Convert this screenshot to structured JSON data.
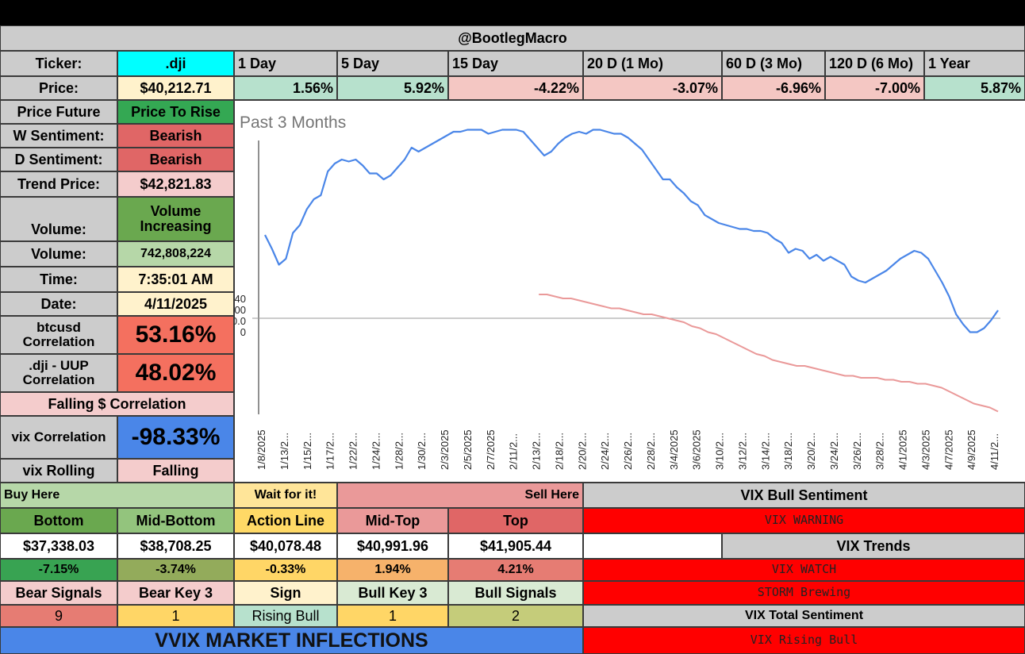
{
  "header": {
    "title": "@BootlegMacro"
  },
  "ticker": {
    "label": "Ticker:",
    "value": ".dji"
  },
  "price": {
    "label": "Price:",
    "value": "$40,212.71"
  },
  "periods": [
    {
      "label": "1 Day",
      "change": "1.56%",
      "color": "#b7e1cd"
    },
    {
      "label": "5 Day",
      "change": "5.92%",
      "color": "#b7e1cd"
    },
    {
      "label": "15 Day",
      "change": "-4.22%",
      "color": "#f4c7c3"
    },
    {
      "label": "20 D (1 Mo)",
      "change": "-3.07%",
      "color": "#f4c7c3"
    },
    {
      "label": "60 D (3 Mo)",
      "change": "-6.96%",
      "color": "#f4c7c3"
    },
    {
      "label": "120 D (6 Mo)",
      "change": "-7.00%",
      "color": "#f4c7c3"
    },
    {
      "label": "1 Year",
      "change": "5.87%",
      "color": "#b7e1cd"
    }
  ],
  "left_rows": {
    "price_future": {
      "label": "Price Future",
      "value": "Price To Rise"
    },
    "w_sentiment": {
      "label": "W Sentiment:",
      "value": "Bearish"
    },
    "d_sentiment": {
      "label": "D Sentiment:",
      "value": "Bearish"
    },
    "trend_price": {
      "label": "Trend Price:",
      "value": "$42,821.83"
    },
    "volume_trend": {
      "label": "Volume:",
      "value": "Volume Increasing"
    },
    "volume": {
      "label": "Volume:",
      "value": "742,808,224"
    },
    "time": {
      "label": "Time:",
      "value": "7:35:01 AM"
    },
    "date": {
      "label": "Date:",
      "value": "4/11/2025"
    },
    "btc_corr": {
      "label": "btcusd Correlation",
      "value": "53.16%"
    },
    "uup_corr": {
      "label": ".dji - UUP Correlation",
      "value": "48.02%"
    },
    "falling": {
      "label": "Falling $ Correlation"
    },
    "vix_corr": {
      "label": "vix Correlation",
      "value": "-98.33%"
    },
    "vix_rolling": {
      "label": "vix Rolling",
      "value": "Falling"
    }
  },
  "zones": {
    "buy_here": "Buy Here",
    "wait": "Wait for it!",
    "sell_here": "Sell Here",
    "columns": [
      {
        "name": "Bottom",
        "price": "$37,338.03",
        "pct": "-7.15%"
      },
      {
        "name": "Mid-Bottom",
        "price": "$38,708.25",
        "pct": "-3.74%"
      },
      {
        "name": "Action Line",
        "price": "$40,078.48",
        "pct": "-0.33%"
      },
      {
        "name": "Mid-Top",
        "price": "$40,991.96",
        "pct": "1.94%"
      },
      {
        "name": "Top",
        "price": "$41,905.44",
        "pct": "4.21%"
      }
    ]
  },
  "signals": {
    "headers": [
      "Bear Signals",
      "Bear Key 3",
      "Sign",
      "Bull Key 3",
      "Bull Signals"
    ],
    "values": [
      "9",
      "1",
      "Rising Bull",
      "1",
      "2"
    ]
  },
  "vvix": {
    "label": "VVIX MARKET INFLECTIONS"
  },
  "vix_panel": {
    "bull_sentiment": "VIX Bull Sentiment",
    "warning": "VIX WARNING",
    "trends": "VIX Trends",
    "watch": "VIX WATCH",
    "storm": "STORM Brewing",
    "total": "VIX Total Sentiment",
    "rising": "VIX Rising Bull"
  },
  "chart_data": {
    "type": "line",
    "title": "Past 3 Months",
    "x_tick_labels": [
      "1/8/2025",
      "1/13/2...",
      "1/15/2...",
      "1/17/2...",
      "1/22/2...",
      "1/24/2...",
      "1/28/2...",
      "1/30/2...",
      "2/3/2025",
      "2/5/2025",
      "2/7/2025",
      "2/11/2...",
      "2/13/2...",
      "2/18/2...",
      "2/20/2...",
      "2/24/2...",
      "2/26/2...",
      "2/28/2...",
      "3/4/2025",
      "3/6/2025",
      "3/10/2...",
      "3/12/2...",
      "3/14/2...",
      "3/18/2...",
      "3/20/2...",
      "3/24/2...",
      "3/26/2...",
      "3/28/2...",
      "4/1/2025",
      "4/3/2025",
      "4/7/2025",
      "4/9/2025",
      "4/11/2..."
    ],
    "y_tick_labels": [
      "40",
      "00",
      "0.0",
      "0"
    ],
    "series": [
      {
        "values": [
          0.42,
          0.35,
          0.27,
          0.3,
          0.43,
          0.47,
          0.55,
          0.6,
          0.62,
          0.74,
          0.78,
          0.8,
          0.79,
          0.8,
          0.77,
          0.73,
          0.73,
          0.7,
          0.72,
          0.76,
          0.8,
          0.86,
          0.84,
          0.86,
          0.88,
          0.9,
          0.92,
          0.94,
          0.94,
          0.95,
          0.95,
          0.95,
          0.93,
          0.94,
          0.95,
          0.95,
          0.95,
          0.94,
          0.9,
          0.86,
          0.82,
          0.84,
          0.88,
          0.91,
          0.93,
          0.94,
          0.93,
          0.95,
          0.95,
          0.94,
          0.93,
          0.93,
          0.91,
          0.88,
          0.85,
          0.8,
          0.75,
          0.7,
          0.7,
          0.66,
          0.63,
          0.59,
          0.57,
          0.52,
          0.5,
          0.48,
          0.47,
          0.46,
          0.45,
          0.45,
          0.44,
          0.44,
          0.43,
          0.4,
          0.38,
          0.33,
          0.35,
          0.34,
          0.3,
          0.32,
          0.29,
          0.31,
          0.29,
          0.27,
          0.21,
          0.19,
          0.18,
          0.2,
          0.22,
          0.24,
          0.27,
          0.3,
          0.32,
          0.34,
          0.33,
          0.3,
          0.24,
          0.18,
          0.11,
          0.02,
          -0.03,
          -0.07,
          -0.07,
          -0.05,
          -0.01,
          0.04
        ],
        "color": "#4a86e8"
      },
      {
        "values": [
          null,
          null,
          null,
          null,
          null,
          null,
          null,
          null,
          null,
          null,
          null,
          null,
          null,
          null,
          null,
          null,
          null,
          null,
          null,
          null,
          null,
          null,
          null,
          null,
          null,
          null,
          null,
          null,
          null,
          null,
          null,
          null,
          null,
          null,
          0.12,
          0.12,
          0.11,
          0.1,
          0.1,
          0.09,
          0.08,
          0.07,
          0.06,
          0.05,
          0.05,
          0.04,
          0.03,
          0.02,
          0.02,
          0.01,
          0.0,
          -0.01,
          -0.02,
          -0.04,
          -0.05,
          -0.07,
          -0.08,
          -0.1,
          -0.12,
          -0.14,
          -0.16,
          -0.18,
          -0.19,
          -0.21,
          -0.22,
          -0.23,
          -0.24,
          -0.24,
          -0.25,
          -0.26,
          -0.27,
          -0.28,
          -0.29,
          -0.29,
          -0.3,
          -0.3,
          -0.3,
          -0.31,
          -0.31,
          -0.32,
          -0.32,
          -0.33,
          -0.33,
          -0.34,
          -0.35,
          -0.37,
          -0.39,
          -0.41,
          -0.43,
          -0.44,
          -0.45,
          -0.47
        ],
        "color": "#ea9999"
      }
    ]
  }
}
